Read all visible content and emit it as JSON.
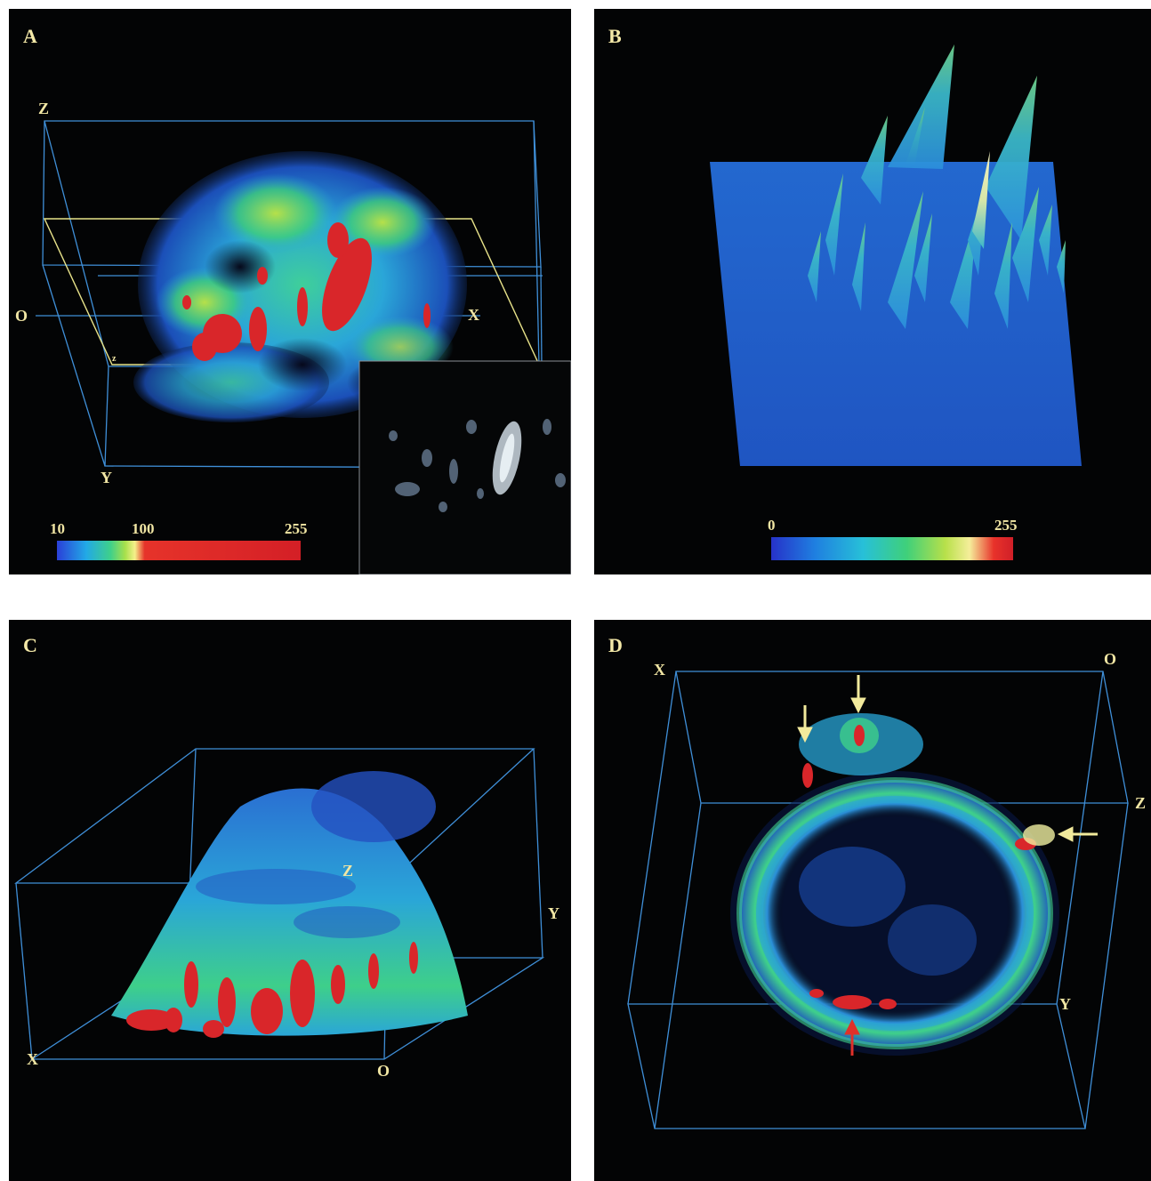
{
  "panels": {
    "a": {
      "label": "A",
      "axes": {
        "z": "Z",
        "o": "O",
        "x": "X",
        "y": "Y",
        "small_z": "z"
      },
      "colorbar": {
        "ticks": [
          "10",
          "100",
          "255"
        ],
        "colors": [
          "#2a3fd8",
          "#22a9e6",
          "#3fd08a",
          "#a8e04c",
          "#f5f08a",
          "#e6332a",
          "#d41f26"
        ]
      },
      "inset": true
    },
    "b": {
      "label": "B",
      "colorbar": {
        "ticks": [
          "0",
          "255"
        ],
        "colors": [
          "#2632c9",
          "#1f7fe0",
          "#27c0d8",
          "#3fd07a",
          "#b8e04a",
          "#f5ee9a",
          "#e8322a",
          "#d01f28"
        ]
      }
    },
    "c": {
      "label": "C",
      "axes": {
        "z": "Z",
        "y": "Y",
        "x": "X",
        "o": "O"
      }
    },
    "d": {
      "label": "D",
      "axes": {
        "x": "X",
        "o": "O",
        "z": "Z",
        "y": "Y"
      },
      "arrows": {
        "yellow": 3,
        "red": 1
      }
    }
  },
  "colors": {
    "box_lines": "#3f8fd8",
    "yellow_plane": "#e8e38a",
    "label": "#f4e9a8",
    "arrow_yellow": "#f2ea9c",
    "arrow_red": "#e0302a"
  }
}
